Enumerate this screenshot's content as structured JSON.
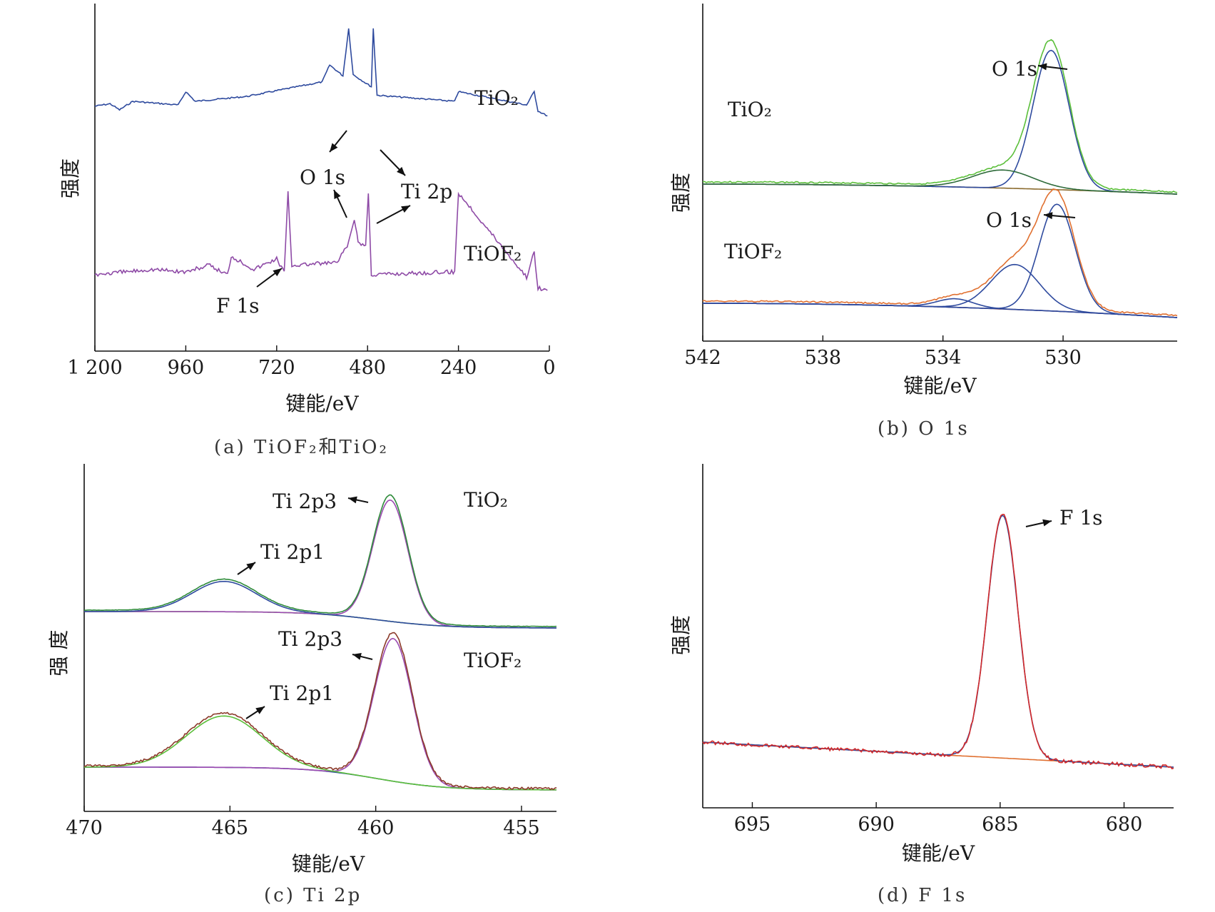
{
  "chart_data": [
    {
      "type": "line",
      "caption": "(a) TiOF₂和TiO₂",
      "xlabel": "键能/eV",
      "ylabel": "强度",
      "xlim": [
        1200,
        0
      ],
      "x_ticks": [
        1200,
        960,
        720,
        480,
        240,
        0
      ],
      "x_tick_labels": [
        "1 200",
        "960",
        "720",
        "480",
        "240",
        "0"
      ],
      "series": [
        {
          "name": "TiO₂",
          "color": "#2e4a9e",
          "points": [
            [
              1200,
              0.64
            ],
            [
              1160,
              0.62
            ],
            [
              1135,
              0.67
            ],
            [
              1100,
              0.6
            ],
            [
              1040,
              0.615
            ],
            [
              980,
              0.63
            ],
            [
              960,
              0.52
            ],
            [
              935,
              0.6
            ],
            [
              800,
              0.56
            ],
            [
              700,
              0.5
            ],
            [
              600,
              0.44
            ],
            [
              580,
              0.3
            ],
            [
              545,
              0.39
            ],
            [
              530,
              0.0
            ],
            [
              518,
              0.38
            ],
            [
              470,
              0.48
            ],
            [
              465,
              0.0
            ],
            [
              455,
              0.55
            ],
            [
              250,
              0.6
            ],
            [
              240,
              0.52
            ],
            [
              60,
              0.63
            ],
            [
              40,
              0.52
            ],
            [
              30,
              0.68
            ],
            [
              5,
              0.72
            ]
          ]
        },
        {
          "name": "TiOF₂",
          "color": "#8e4aa6",
          "points": [
            [
              1200,
              0.62
            ],
            [
              1120,
              0.6
            ],
            [
              1050,
              0.58
            ],
            [
              960,
              0.6
            ],
            [
              900,
              0.55
            ],
            [
              850,
              0.62
            ],
            [
              840,
              0.48
            ],
            [
              780,
              0.58
            ],
            [
              720,
              0.5
            ],
            [
              700,
              0.6
            ],
            [
              690,
              0.0
            ],
            [
              680,
              0.55
            ],
            [
              560,
              0.53
            ],
            [
              530,
              0.38
            ],
            [
              515,
              0.2
            ],
            [
              505,
              0.38
            ],
            [
              485,
              0.4
            ],
            [
              478,
              0.0
            ],
            [
              470,
              0.62
            ],
            [
              250,
              0.6
            ],
            [
              240,
              0.0
            ],
            [
              60,
              0.64
            ],
            [
              40,
              0.45
            ],
            [
              30,
              0.72
            ],
            [
              5,
              0.74
            ]
          ]
        }
      ],
      "annotations": [
        "O 1s",
        "Ti 2p",
        "O 1s",
        "Ti 2p",
        "F 1s"
      ],
      "series_labels": [
        "TiO₂",
        "TiOF₂"
      ]
    },
    {
      "type": "line",
      "caption": "(b) O 1s",
      "xlabel": "键能/eV",
      "ylabel": "强度",
      "xlim": [
        542,
        526.2
      ],
      "x_ticks": [
        542,
        538,
        534,
        530
      ],
      "x_tick_labels": [
        "542",
        "538",
        "534",
        "530"
      ],
      "groups": [
        {
          "label": "TiO₂",
          "peak_label": "O 1s",
          "baseline_color": "#8b6b2e",
          "envelope_color": "#5bbf3a",
          "components": [
            {
              "center": 530.4,
              "height": 1.0,
              "width": 0.6,
              "color": "#2e4a9e"
            },
            {
              "center": 532.0,
              "height": 0.13,
              "width": 1.0,
              "color": "#2e6b3a"
            }
          ]
        },
        {
          "label": "TiOF₂",
          "peak_label": "O 1s",
          "baseline_color": "#4a2a5a",
          "envelope_color": "#e07030",
          "components": [
            {
              "center": 530.2,
              "height": 1.0,
              "width": 0.6,
              "color": "#2e4a9e"
            },
            {
              "center": 531.6,
              "height": 0.42,
              "width": 0.8,
              "color": "#2e4a9e"
            },
            {
              "center": 533.6,
              "height": 0.08,
              "width": 0.6,
              "color": "#2e4a9e"
            }
          ]
        }
      ]
    },
    {
      "type": "line",
      "caption": "(c) Ti 2p",
      "xlabel": "键能/eV",
      "ylabel": "强 度",
      "xlim": [
        470,
        453.8
      ],
      "x_ticks": [
        470,
        465,
        460,
        455
      ],
      "x_tick_labels": [
        "470",
        "465",
        "460",
        "455"
      ],
      "groups": [
        {
          "label": "TiO₂",
          "labels": [
            "Ti  2p3",
            "Ti  2p1"
          ],
          "baseline_color": "#6cc04a",
          "envelope_color": "#2e8b3a",
          "components": [
            {
              "center": 459.5,
              "height": 1.0,
              "width": 0.6,
              "color": "#9b4ab0"
            },
            {
              "center": 465.2,
              "height": 0.25,
              "width": 1.1,
              "color": "#2e4a9e"
            }
          ]
        },
        {
          "label": "TiOF₂",
          "labels": [
            "Ti  2p3",
            "Ti  2p1"
          ],
          "baseline_color": "#2e4a9e",
          "envelope_color": "#8b3a2a",
          "components": [
            {
              "center": 459.4,
              "height": 1.0,
              "width": 0.65,
              "color": "#9b4ab0"
            },
            {
              "center": 465.2,
              "height": 0.36,
              "width": 1.3,
              "color": "#5bbf3a"
            }
          ]
        }
      ]
    },
    {
      "type": "line",
      "caption": "(d) F 1s",
      "xlabel": "键能/eV",
      "ylabel": "强度",
      "xlim": [
        697,
        678.0
      ],
      "x_ticks": [
        695,
        690,
        685,
        680
      ],
      "x_tick_labels": [
        "695",
        "690",
        "685",
        "680"
      ],
      "peak_label": "F 1s",
      "peak": {
        "center": 684.9,
        "height": 1.0,
        "width": 0.62
      },
      "series_colors": {
        "fit": "#2e4a9e",
        "raw": "#d42a2a",
        "baseline": "#e07030"
      }
    }
  ]
}
